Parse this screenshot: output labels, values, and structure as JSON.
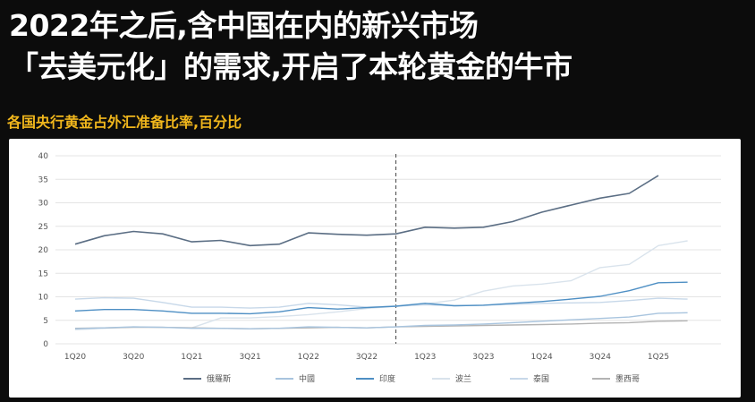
{
  "headline": {
    "line1": "2022年之后,含中国在内的新兴市场",
    "line2": "「去美元化」的需求,开启了本轮黄金的牛市"
  },
  "subtitle": "各国央行黄金占外汇准备比率,百分比",
  "chart_data": {
    "type": "line",
    "title": "",
    "xlabel": "",
    "ylabel": "",
    "ylim": [
      0,
      40
    ],
    "yticks": [
      0,
      5,
      10,
      15,
      20,
      25,
      30,
      35,
      40
    ],
    "x": [
      "1Q20",
      "2Q20",
      "3Q20",
      "4Q20",
      "1Q21",
      "2Q21",
      "3Q21",
      "4Q21",
      "1Q22",
      "2Q22",
      "3Q22",
      "4Q22",
      "1Q23",
      "2Q23",
      "3Q23",
      "4Q23",
      "1Q24",
      "2Q24",
      "3Q24",
      "4Q24",
      "1Q25",
      "2Q25"
    ],
    "xtick_labels": [
      "1Q20",
      "3Q20",
      "1Q21",
      "3Q21",
      "1Q22",
      "3Q22",
      "1Q23",
      "3Q23",
      "1Q24",
      "3Q24",
      "1Q25"
    ],
    "divider_at": "4Q22",
    "grid": "horizontal",
    "legend_position": "bottom",
    "series": [
      {
        "name": "俄羅斯",
        "color": "#5b6e84",
        "values": [
          21.2,
          23.0,
          23.9,
          23.4,
          21.7,
          22.0,
          20.9,
          21.2,
          23.6,
          23.3,
          23.1,
          23.4,
          24.8,
          24.6,
          24.8,
          26.0,
          28.0,
          29.5,
          31.0,
          32.0,
          35.8,
          null
        ]
      },
      {
        "name": "中國",
        "color": "#a8c4de",
        "values": [
          3.2,
          3.4,
          3.6,
          3.5,
          3.3,
          3.3,
          3.2,
          3.3,
          3.6,
          3.5,
          3.4,
          3.6,
          3.9,
          4.0,
          4.2,
          4.5,
          4.8,
          5.1,
          5.4,
          5.7,
          6.5,
          6.6
        ]
      },
      {
        "name": "印度",
        "color": "#4e8fc4",
        "values": [
          7.0,
          7.3,
          7.3,
          7.0,
          6.5,
          6.5,
          6.4,
          6.8,
          7.7,
          7.4,
          7.7,
          8.0,
          8.6,
          8.1,
          8.2,
          8.6,
          9.0,
          9.5,
          10.1,
          11.3,
          13.0,
          13.1
        ]
      },
      {
        "name": "波兰",
        "color": "#d9e3ec",
        "values": [
          3.0,
          3.3,
          3.6,
          3.5,
          3.4,
          5.5,
          5.5,
          5.8,
          6.2,
          6.8,
          7.5,
          8.0,
          8.5,
          9.3,
          11.2,
          12.3,
          12.7,
          13.4,
          16.2,
          16.9,
          20.9,
          21.9
        ]
      },
      {
        "name": "泰国",
        "color": "#c7d8e9",
        "values": [
          9.5,
          9.8,
          9.7,
          8.8,
          7.8,
          7.8,
          7.6,
          7.8,
          8.6,
          8.3,
          7.8,
          8.0,
          8.3,
          8.1,
          8.2,
          8.4,
          8.6,
          8.7,
          8.8,
          9.2,
          9.7,
          9.5
        ]
      },
      {
        "name": "墨西哥",
        "color": "#b3b3b3",
        "values": [
          3.3,
          3.4,
          3.5,
          3.5,
          3.4,
          3.3,
          3.2,
          3.3,
          3.4,
          3.5,
          3.4,
          3.6,
          3.7,
          3.8,
          3.9,
          4.0,
          4.1,
          4.2,
          4.4,
          4.5,
          4.8,
          4.9
        ]
      }
    ]
  }
}
